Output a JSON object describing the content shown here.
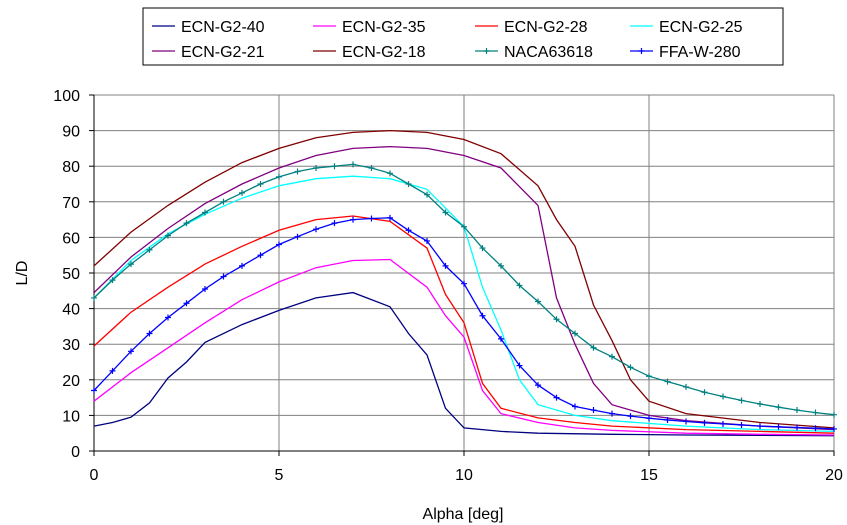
{
  "chart_data": {
    "type": "line",
    "title": "",
    "xlabel": "Alpha [deg]",
    "ylabel": "L/D",
    "xlim": [
      0,
      20
    ],
    "ylim": [
      0,
      100
    ],
    "x_ticks": [
      0,
      5,
      10,
      15,
      20
    ],
    "y_ticks": [
      0,
      10,
      20,
      30,
      40,
      50,
      60,
      70,
      80,
      90,
      100
    ],
    "grid": "vertical and horizontal",
    "legend_placement": "top, outside plot, 4 columns",
    "series": [
      {
        "name": "ECN-G2-40",
        "color": "#000080",
        "marker": "none",
        "x": [
          0,
          0.5,
          1,
          1.5,
          2,
          2.5,
          3,
          4,
          5,
          6,
          7,
          8,
          8.5,
          9,
          9.5,
          10,
          11,
          12,
          14,
          16,
          18,
          20
        ],
        "y": [
          7,
          8,
          9.5,
          13.5,
          20.5,
          25,
          30.5,
          35.5,
          39.5,
          43,
          44.5,
          40.5,
          33,
          27,
          12,
          6.5,
          5.5,
          5,
          4.7,
          4.5,
          4.4,
          4.3
        ]
      },
      {
        "name": "ECN-G2-35",
        "color": "#ff00ff",
        "marker": "none",
        "x": [
          0,
          1,
          2,
          3,
          4,
          5,
          6,
          7,
          8,
          9,
          9.5,
          10,
          10.5,
          11,
          12,
          13,
          14,
          16,
          18,
          20
        ],
        "y": [
          14,
          22,
          29,
          36,
          42.5,
          47.5,
          51.5,
          53.5,
          53.8,
          46,
          38,
          32,
          17,
          10.5,
          8,
          6.5,
          5.8,
          5,
          4.7,
          4.5
        ]
      },
      {
        "name": "ECN-G2-28",
        "color": "#ff0000",
        "marker": "none",
        "x": [
          0,
          1,
          2,
          3,
          4,
          5,
          6,
          7,
          8,
          9,
          9.5,
          10,
          10.5,
          11,
          12,
          13,
          14,
          16,
          18,
          20
        ],
        "y": [
          29.5,
          39,
          46,
          52.5,
          57.5,
          62,
          65,
          66,
          64.5,
          57,
          44,
          36,
          19,
          12,
          9.3,
          8,
          7,
          6,
          5.5,
          5
        ]
      },
      {
        "name": "ECN-G2-25",
        "color": "#00ffff",
        "marker": "none",
        "x": [
          0,
          1,
          2,
          3,
          4,
          5,
          6,
          7,
          8,
          9,
          10,
          10.5,
          11,
          11.5,
          12,
          13,
          14,
          16,
          18,
          20
        ],
        "y": [
          43,
          53.5,
          61,
          66.5,
          71,
          74.5,
          76.5,
          77.2,
          76.5,
          73.5,
          63,
          46,
          34,
          20,
          13,
          10,
          8.5,
          7,
          6,
          5.5
        ]
      },
      {
        "name": "ECN-G2-21",
        "color": "#800080",
        "marker": "none",
        "x": [
          0,
          1,
          2,
          3,
          4,
          5,
          6,
          7,
          8,
          9,
          10,
          11,
          12,
          12.5,
          13,
          13.5,
          14,
          15,
          16,
          18,
          20
        ],
        "y": [
          44.5,
          54.5,
          62.5,
          69.5,
          75,
          79.5,
          83,
          85,
          85.5,
          85,
          83,
          79.5,
          69,
          43,
          30,
          19,
          13,
          10,
          8.5,
          7,
          6
        ]
      },
      {
        "name": "ECN-G2-18",
        "color": "#800000",
        "marker": "none",
        "x": [
          0,
          1,
          2,
          3,
          4,
          5,
          6,
          7,
          8,
          9,
          10,
          11,
          12,
          12.5,
          13,
          13.5,
          14,
          14.5,
          15,
          16,
          18,
          20
        ],
        "y": [
          52,
          61.5,
          69,
          75.5,
          81,
          85,
          88,
          89.5,
          90,
          89.5,
          87.5,
          83.5,
          74.5,
          65,
          57.5,
          41,
          31,
          20,
          14,
          10.5,
          8,
          6.5
        ]
      },
      {
        "name": "NACA63618",
        "color": "#008080",
        "marker": "plus",
        "x": [
          0,
          0.5,
          1,
          1.5,
          2,
          2.5,
          3,
          3.5,
          4,
          4.5,
          5,
          5.5,
          6,
          6.5,
          7,
          7.5,
          8,
          8.5,
          9,
          9.5,
          10,
          10.5,
          11,
          11.5,
          12,
          12.5,
          13,
          13.5,
          14,
          14.5,
          15,
          15.5,
          16,
          16.5,
          17,
          17.5,
          18,
          18.5,
          19,
          19.5,
          20
        ],
        "y": [
          43,
          48,
          52.5,
          56.5,
          60.5,
          64,
          67,
          70,
          72.5,
          75,
          77,
          78.5,
          79.5,
          80,
          80.5,
          79.5,
          78,
          75,
          72,
          67,
          63,
          57,
          52,
          46.5,
          42,
          37,
          33,
          29,
          26.5,
          23.5,
          21,
          19.5,
          18,
          16.5,
          15.3,
          14.2,
          13.2,
          12.3,
          11.5,
          10.8,
          10.2
        ]
      },
      {
        "name": "FFA-W-280",
        "color": "#0000ff",
        "marker": "plus",
        "x": [
          0,
          0.5,
          1,
          1.5,
          2,
          2.5,
          3,
          3.5,
          4,
          4.5,
          5,
          5.5,
          6,
          6.5,
          7,
          7.5,
          8,
          8.5,
          9,
          9.5,
          10,
          10.5,
          11,
          11.5,
          12,
          12.5,
          13,
          13.5,
          14,
          14.5,
          15,
          15.5,
          16,
          16.5,
          17,
          17.5,
          18,
          18.5,
          19,
          19.5,
          20
        ],
        "y": [
          17,
          22.5,
          28,
          33,
          37.5,
          41.5,
          45.5,
          49,
          52,
          55,
          58,
          60.2,
          62.3,
          64,
          65,
          65.3,
          65.5,
          62,
          59,
          52,
          47,
          38,
          31.5,
          24,
          18.5,
          15,
          12.5,
          11.5,
          10.5,
          9.8,
          9.2,
          8.7,
          8.3,
          7.9,
          7.6,
          7.3,
          7,
          6.8,
          6.6,
          6.4,
          6.2
        ]
      }
    ]
  }
}
